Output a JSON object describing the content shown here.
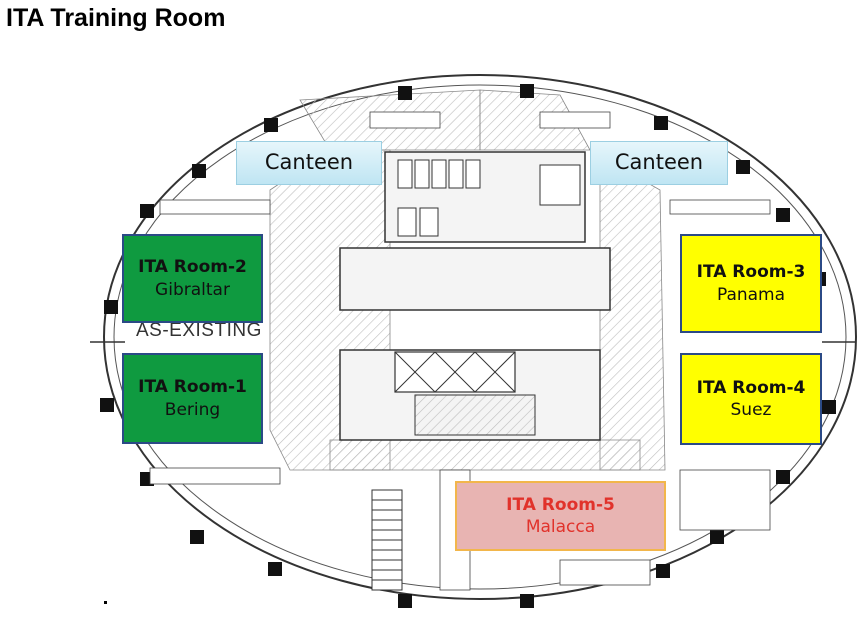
{
  "title": "ITA Training Room",
  "plan_label": "AS-EXISTING",
  "canteens": [
    "Canteen",
    "Canteen"
  ],
  "rooms": [
    {
      "name": "ITA Room-2",
      "subtitle": "Gibraltar",
      "color": "#0f9a40"
    },
    {
      "name": "ITA Room-1",
      "subtitle": "Bering",
      "color": "#0f9a40"
    },
    {
      "name": "ITA Room-3",
      "subtitle": "Panama",
      "color": "#ffff00"
    },
    {
      "name": "ITA Room-4",
      "subtitle": "Suez",
      "color": "#ffff00"
    },
    {
      "name": "ITA Room-5",
      "subtitle": "Malacca",
      "color": "#e8b4b2"
    }
  ],
  "colors": {
    "border_blue": "#2b4a86",
    "border_orange": "#f2b64b",
    "red_text": "#e1322b"
  }
}
